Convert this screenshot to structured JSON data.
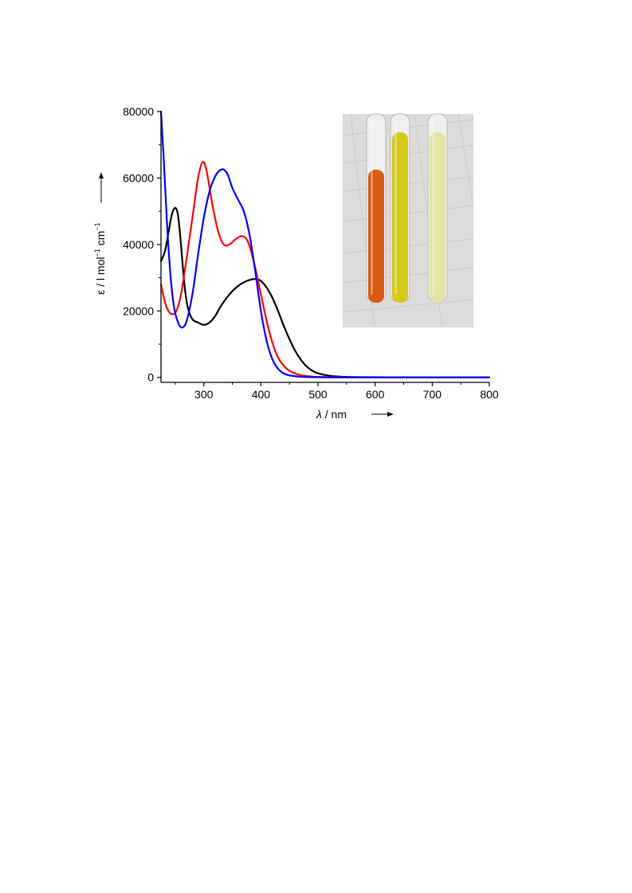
{
  "chart_data": {
    "type": "line",
    "xlabel_symbol": "λ",
    "xlabel_unit": " / nm",
    "ylabel_symbol": "ε",
    "ylabel_unit_parts": [
      " / l mol",
      "−1",
      " cm",
      "−1"
    ],
    "xlim": [
      225,
      800
    ],
    "ylim": [
      -1500,
      80000
    ],
    "x_ticks": [
      300,
      400,
      500,
      600,
      700,
      800
    ],
    "x_tick_labels": [
      "300",
      "400",
      "500",
      "600",
      "700",
      "800"
    ],
    "y_ticks": [
      0,
      20000,
      40000,
      60000,
      80000
    ],
    "y_tick_labels": [
      "0",
      "20000",
      "40000",
      "60000",
      "80000"
    ],
    "grid": false,
    "legend": "none",
    "series": [
      {
        "color": "#000000",
        "points": [
          [
            225,
            35000
          ],
          [
            232,
            38000
          ],
          [
            238,
            43500
          ],
          [
            244,
            49000
          ],
          [
            250,
            51000
          ],
          [
            255,
            48500
          ],
          [
            260,
            40000
          ],
          [
            266,
            28000
          ],
          [
            272,
            21000
          ],
          [
            280,
            17500
          ],
          [
            290,
            16500
          ],
          [
            300,
            15800
          ],
          [
            310,
            16500
          ],
          [
            320,
            18500
          ],
          [
            330,
            21500
          ],
          [
            345,
            25000
          ],
          [
            360,
            27500
          ],
          [
            375,
            29000
          ],
          [
            390,
            29600
          ],
          [
            400,
            29000
          ],
          [
            410,
            27000
          ],
          [
            420,
            24000
          ],
          [
            430,
            20000
          ],
          [
            440,
            15500
          ],
          [
            450,
            11500
          ],
          [
            460,
            8000
          ],
          [
            470,
            5300
          ],
          [
            480,
            3300
          ],
          [
            490,
            2000
          ],
          [
            500,
            1200
          ],
          [
            520,
            500
          ],
          [
            550,
            150
          ],
          [
            600,
            50
          ],
          [
            700,
            0
          ],
          [
            800,
            0
          ]
        ]
      },
      {
        "color": "#ff0000",
        "points": [
          [
            225,
            28000
          ],
          [
            230,
            24000
          ],
          [
            235,
            21000
          ],
          [
            240,
            19500
          ],
          [
            245,
            19000
          ],
          [
            252,
            20000
          ],
          [
            260,
            25000
          ],
          [
            270,
            36000
          ],
          [
            280,
            48000
          ],
          [
            290,
            60000
          ],
          [
            298,
            64800
          ],
          [
            305,
            62000
          ],
          [
            315,
            52000
          ],
          [
            325,
            44000
          ],
          [
            335,
            40000
          ],
          [
            345,
            40000
          ],
          [
            355,
            41500
          ],
          [
            365,
            42500
          ],
          [
            373,
            42000
          ],
          [
            380,
            39500
          ],
          [
            390,
            33000
          ],
          [
            400,
            25000
          ],
          [
            410,
            17000
          ],
          [
            420,
            10500
          ],
          [
            430,
            6000
          ],
          [
            440,
            3500
          ],
          [
            450,
            2000
          ],
          [
            465,
            900
          ],
          [
            480,
            400
          ],
          [
            500,
            150
          ],
          [
            550,
            50
          ],
          [
            600,
            0
          ],
          [
            800,
            0
          ]
        ]
      },
      {
        "color": "#0000ff",
        "points": [
          [
            225,
            80000
          ],
          [
            230,
            65000
          ],
          [
            236,
            45000
          ],
          [
            242,
            30000
          ],
          [
            248,
            21000
          ],
          [
            255,
            16500
          ],
          [
            262,
            15000
          ],
          [
            270,
            17000
          ],
          [
            280,
            25000
          ],
          [
            290,
            37000
          ],
          [
            300,
            48000
          ],
          [
            310,
            56000
          ],
          [
            320,
            60500
          ],
          [
            328,
            62300
          ],
          [
            335,
            62500
          ],
          [
            342,
            61000
          ],
          [
            350,
            57000
          ],
          [
            360,
            53500
          ],
          [
            370,
            50000
          ],
          [
            380,
            43000
          ],
          [
            390,
            32000
          ],
          [
            400,
            20000
          ],
          [
            410,
            11000
          ],
          [
            420,
            5500
          ],
          [
            430,
            2600
          ],
          [
            440,
            1200
          ],
          [
            450,
            600
          ],
          [
            470,
            200
          ],
          [
            500,
            50
          ],
          [
            550,
            0
          ],
          [
            800,
            0
          ]
        ]
      }
    ]
  },
  "inset_photo": {
    "tubes": [
      {
        "color": "#d95a10"
      },
      {
        "color": "#d8c817"
      },
      {
        "color": "#e4e4a6"
      }
    ]
  }
}
